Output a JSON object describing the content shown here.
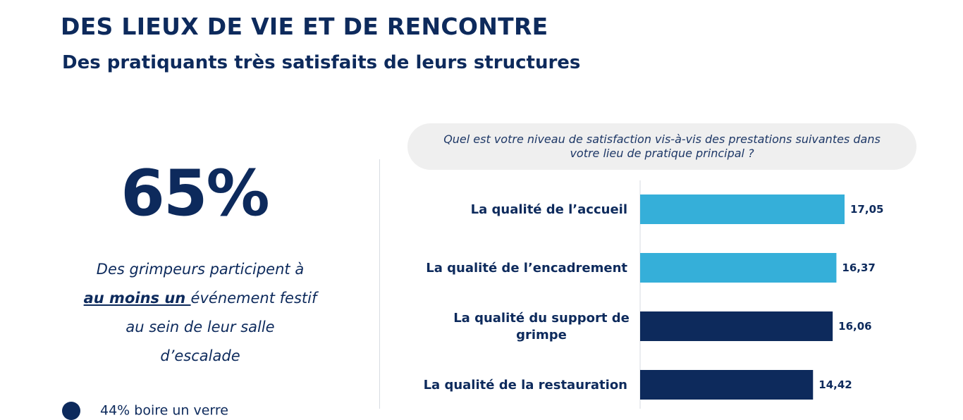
{
  "header": {
    "title": "DES LIEUX DE VIE ET DE RENCONTRE",
    "subtitle": "Des pratiquants très satisfaits de leurs structures"
  },
  "stat": {
    "value": "65%",
    "desc_line1": "Des grimpeurs participent à",
    "desc_emph": "au moins un ",
    "desc_line2_rest": "événement festif",
    "desc_line3": "au sein de leur salle",
    "desc_line4": "d’escalade"
  },
  "bullet": {
    "text": "44% boire un verre"
  },
  "colors": {
    "navy": "#0d2a5c",
    "light_blue": "#35afd9"
  },
  "chart_data": {
    "type": "bar",
    "orientation": "horizontal",
    "title": "Quel est votre niveau de satisfaction vis-à-vis des prestations suivantes dans votre lieu de pratique principal ?",
    "categories": [
      "La qualité de l’accueil",
      "La qualité de l’encadrement",
      "La qualité du support de grimpe",
      "La qualité de la restauration"
    ],
    "category_lines": [
      [
        "La qualité de l’accueil"
      ],
      [
        "La qualité de l’encadrement"
      ],
      [
        "La qualité du support de",
        "grimpe"
      ],
      [
        "La qualité de la restauration"
      ]
    ],
    "values": [
      17.05,
      16.37,
      16.06,
      14.42
    ],
    "value_labels": [
      "17,05",
      "16,37",
      "16,06",
      "14,42"
    ],
    "bar_colors": [
      "#35afd9",
      "#35afd9",
      "#0d2a5c",
      "#0d2a5c"
    ],
    "xlim": [
      0,
      17.05
    ],
    "grid": false,
    "legend": "none"
  }
}
